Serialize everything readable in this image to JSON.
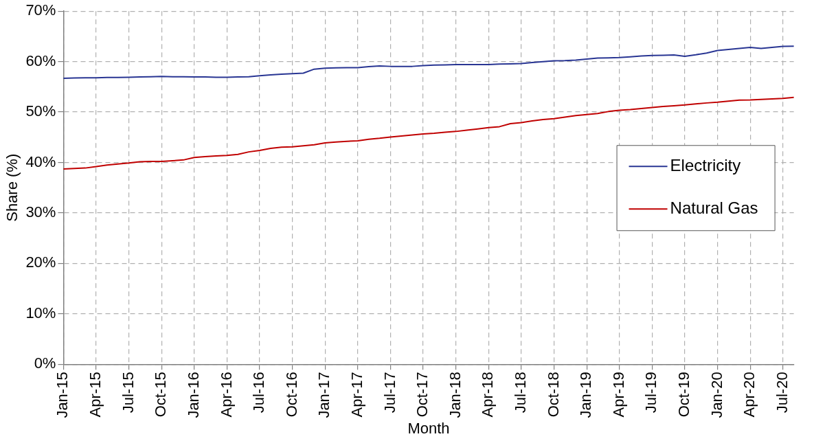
{
  "chart_data": {
    "type": "line",
    "xlabel": "Month",
    "ylabel": "Share (%)",
    "categories": [
      "Jan-15",
      null,
      null,
      "Apr-15",
      null,
      null,
      "Jul-15",
      null,
      null,
      "Oct-15",
      null,
      null,
      "Jan-16",
      null,
      null,
      "Apr-16",
      null,
      null,
      "Jul-16",
      null,
      null,
      "Oct-16",
      null,
      null,
      "Jan-17",
      null,
      null,
      "Apr-17",
      null,
      null,
      "Jul-17",
      null,
      null,
      "Oct-17",
      null,
      null,
      "Jan-18",
      null,
      null,
      "Apr-18",
      null,
      null,
      "Jul-18",
      null,
      null,
      "Oct-18",
      null,
      null,
      "Jan-19",
      null,
      null,
      "Apr-19",
      null,
      null,
      "Jul-19",
      null,
      null,
      "Oct-19",
      null,
      null,
      "Jan-20",
      null,
      null,
      "Apr-20",
      null,
      null,
      "Jul-20",
      null
    ],
    "series": [
      {
        "name": "Electricity",
        "color": "#283593",
        "values": [
          56.7,
          56.75,
          56.8,
          56.8,
          56.85,
          56.85,
          56.9,
          56.95,
          57.0,
          57.05,
          57.0,
          57.0,
          56.95,
          56.95,
          56.9,
          56.9,
          56.95,
          57.0,
          57.2,
          57.35,
          57.5,
          57.6,
          57.7,
          58.5,
          58.7,
          58.75,
          58.8,
          58.8,
          59.0,
          59.15,
          59.05,
          59.05,
          59.05,
          59.2,
          59.3,
          59.35,
          59.4,
          59.4,
          59.4,
          59.4,
          59.5,
          59.55,
          59.6,
          59.8,
          60.0,
          60.15,
          60.2,
          60.3,
          60.5,
          60.7,
          60.75,
          60.8,
          60.95,
          61.1,
          61.2,
          61.25,
          61.3,
          61.05,
          61.35,
          61.7,
          62.2,
          62.4,
          62.6,
          62.8,
          62.6,
          62.8,
          63.0,
          63.05
        ]
      },
      {
        "name": "Natural Gas",
        "color": "#c00000",
        "values": [
          38.7,
          38.8,
          38.9,
          39.2,
          39.5,
          39.7,
          39.9,
          40.15,
          40.2,
          40.2,
          40.35,
          40.5,
          41.0,
          41.15,
          41.3,
          41.4,
          41.6,
          42.1,
          42.4,
          42.8,
          43.05,
          43.1,
          43.3,
          43.5,
          43.9,
          44.05,
          44.2,
          44.3,
          44.6,
          44.8,
          45.05,
          45.25,
          45.45,
          45.65,
          45.8,
          46.0,
          46.15,
          46.4,
          46.65,
          46.9,
          47.1,
          47.7,
          47.9,
          48.25,
          48.5,
          48.7,
          49.0,
          49.3,
          49.5,
          49.7,
          50.1,
          50.35,
          50.5,
          50.7,
          50.9,
          51.1,
          51.25,
          51.4,
          51.6,
          51.8,
          51.95,
          52.15,
          52.35,
          52.4,
          52.5,
          52.6,
          52.7,
          52.9
        ]
      }
    ],
    "ylim": [
      0,
      70
    ],
    "yticks": [
      {
        "value": 0,
        "label": "0%"
      },
      {
        "value": 10,
        "label": "10%"
      },
      {
        "value": 20,
        "label": "20%"
      },
      {
        "value": 30,
        "label": "30%"
      },
      {
        "value": 40,
        "label": "40%"
      },
      {
        "value": 50,
        "label": "50%"
      },
      {
        "value": 60,
        "label": "60%"
      },
      {
        "value": 70,
        "label": "70%"
      }
    ],
    "grid": true,
    "legend": "right",
    "marker": "none",
    "line_style": "solid"
  }
}
